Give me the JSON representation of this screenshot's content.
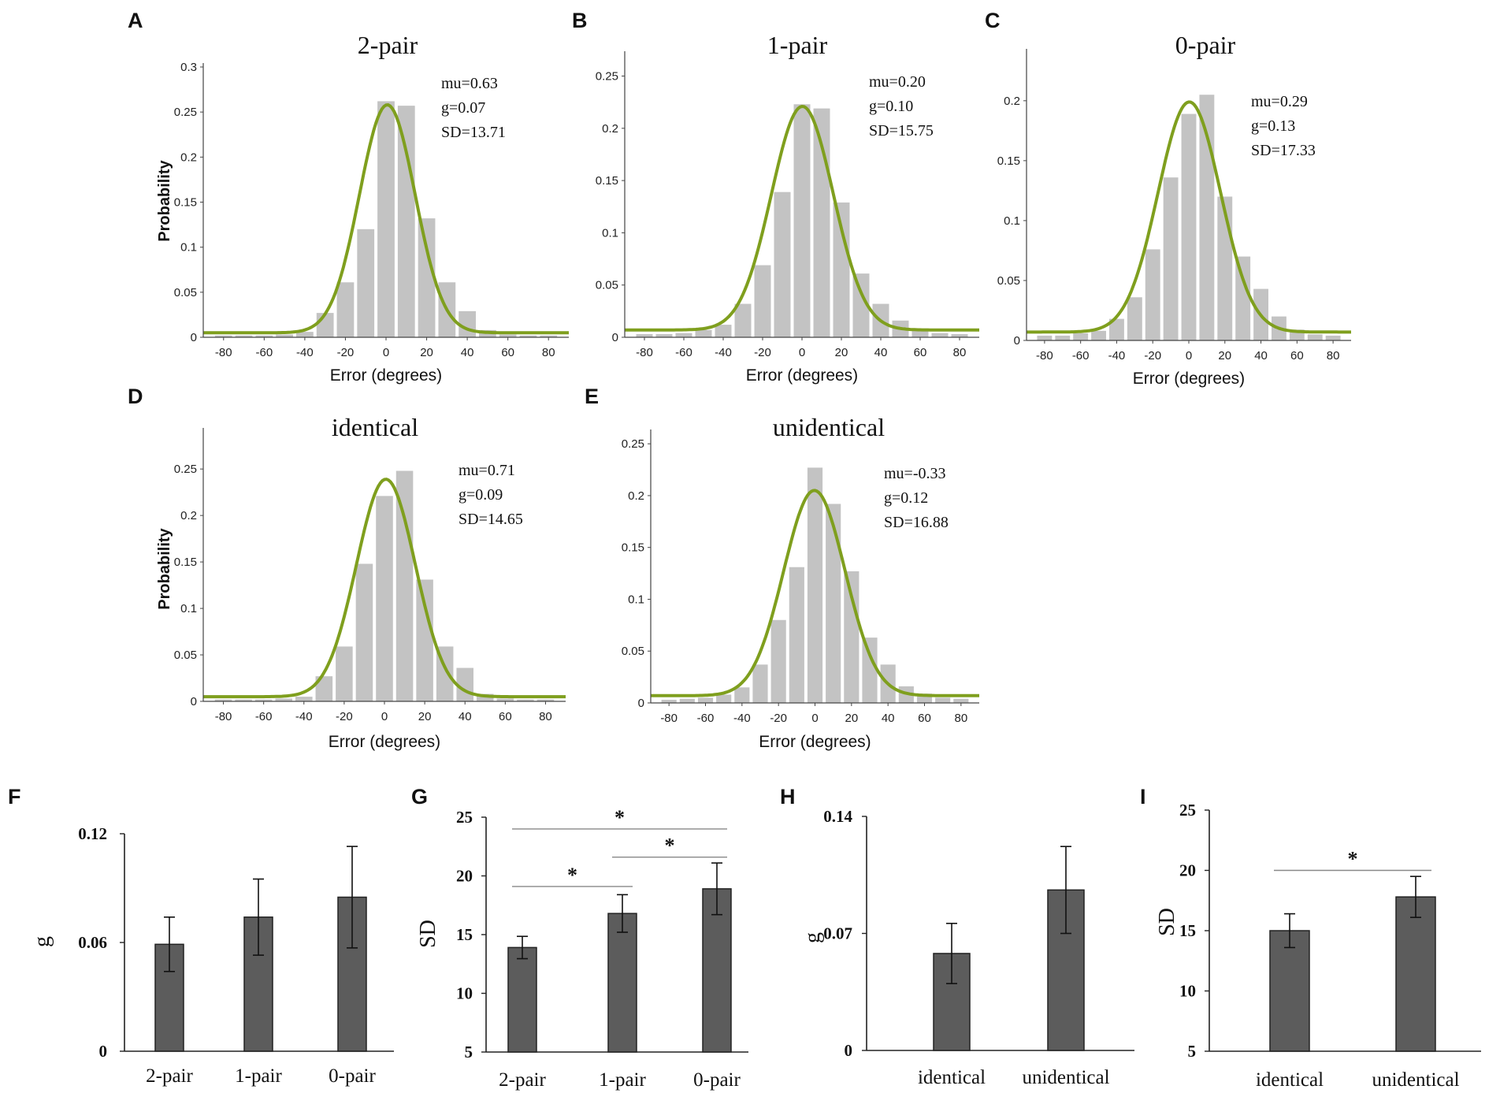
{
  "chart_data": [
    {
      "id": "A",
      "letter": "A",
      "type": "bar",
      "title": "2-pair",
      "xlabel": "Error (degrees)",
      "ylabel": "Probability",
      "xlim": [
        -90,
        90
      ],
      "ylim": [
        0,
        0.3
      ],
      "xticks": [
        "-80",
        "-60",
        "-40",
        "-20",
        "0",
        "20",
        "40",
        "60",
        "80"
      ],
      "yticks": [
        "0",
        "0.05",
        "0.1",
        "0.15",
        "0.2",
        "0.25",
        "0.3"
      ],
      "bin_centers": [
        -80,
        -70,
        -60,
        -50,
        -40,
        -30,
        -20,
        -10,
        0,
        10,
        20,
        30,
        40,
        50,
        60,
        70,
        80
      ],
      "values": [
        0.002,
        0.002,
        0.002,
        0.003,
        0.006,
        0.027,
        0.061,
        0.12,
        0.262,
        0.257,
        0.132,
        0.061,
        0.029,
        0.008,
        0.003,
        0.002,
        0.002
      ],
      "fit": {
        "mu": 0.63,
        "sd": 13.71,
        "baseline": 0.005,
        "peak": 0.258,
        "color": "#7f9f1e"
      },
      "annotations": [
        "mu=0.63",
        "g=0.07",
        "SD=13.71"
      ]
    },
    {
      "id": "B",
      "letter": "B",
      "type": "bar",
      "title": "1-pair",
      "xlabel": "Error (degrees)",
      "ylabel": "",
      "xlim": [
        -90,
        90
      ],
      "ylim": [
        0,
        0.27
      ],
      "xticks": [
        "-80",
        "-60",
        "-40",
        "-20",
        "0",
        "20",
        "40",
        "60",
        "80"
      ],
      "yticks": [
        "0",
        "0.05",
        "0.1",
        "0.15",
        "0.2",
        "0.25"
      ],
      "bin_centers": [
        -80,
        -70,
        -60,
        -50,
        -40,
        -30,
        -20,
        -10,
        0,
        10,
        20,
        30,
        40,
        50,
        60,
        70,
        80
      ],
      "values": [
        0.003,
        0.003,
        0.004,
        0.007,
        0.012,
        0.032,
        0.069,
        0.139,
        0.223,
        0.219,
        0.129,
        0.061,
        0.032,
        0.016,
        0.006,
        0.004,
        0.003
      ],
      "fit": {
        "mu": 0.2,
        "sd": 15.75,
        "baseline": 0.007,
        "peak": 0.221,
        "color": "#7f9f1e"
      },
      "annotations": [
        "mu=0.20",
        "g=0.10",
        "SD=15.75"
      ]
    },
    {
      "id": "C",
      "letter": "C",
      "type": "bar",
      "title": "0-pair",
      "xlabel": "Error (degrees)",
      "ylabel": "",
      "xlim": [
        -90,
        90
      ],
      "ylim": [
        0,
        0.24
      ],
      "xticks": [
        "-80",
        "-60",
        "-40",
        "-20",
        "0",
        "20",
        "40",
        "60",
        "80"
      ],
      "yticks": [
        "0",
        "0.05",
        "0.1",
        "0.15",
        "0.2"
      ],
      "bin_centers": [
        -80,
        -70,
        -60,
        -50,
        -40,
        -30,
        -20,
        -10,
        0,
        10,
        20,
        30,
        40,
        50,
        60,
        70,
        80
      ],
      "values": [
        0.004,
        0.004,
        0.006,
        0.008,
        0.018,
        0.036,
        0.076,
        0.136,
        0.189,
        0.205,
        0.12,
        0.07,
        0.043,
        0.02,
        0.009,
        0.005,
        0.004
      ],
      "fit": {
        "mu": 0.29,
        "sd": 17.33,
        "baseline": 0.007,
        "peak": 0.199,
        "color": "#7f9f1e"
      },
      "annotations": [
        "mu=0.29",
        "g=0.13",
        "SD=17.33"
      ]
    },
    {
      "id": "D",
      "letter": "D",
      "type": "bar",
      "title": "identical",
      "xlabel": "Error (degrees)",
      "ylabel": "Probability",
      "xlim": [
        -90,
        90
      ],
      "ylim": [
        0,
        0.29
      ],
      "xticks": [
        "-80",
        "-60",
        "-40",
        "-20",
        "0",
        "20",
        "40",
        "60",
        "80"
      ],
      "yticks": [
        "0",
        "0.05",
        "0.1",
        "0.15",
        "0.2",
        "0.25"
      ],
      "bin_centers": [
        -80,
        -70,
        -60,
        -50,
        -40,
        -30,
        -20,
        -10,
        0,
        10,
        20,
        30,
        40,
        50,
        60,
        70,
        80
      ],
      "values": [
        0.002,
        0.002,
        0.002,
        0.003,
        0.005,
        0.027,
        0.059,
        0.148,
        0.221,
        0.248,
        0.131,
        0.059,
        0.036,
        0.008,
        0.003,
        0.002,
        0.002
      ],
      "fit": {
        "mu": 0.71,
        "sd": 14.65,
        "baseline": 0.005,
        "peak": 0.239,
        "color": "#7f9f1e"
      },
      "annotations": [
        "mu=0.71",
        "g=0.09",
        "SD=14.65"
      ]
    },
    {
      "id": "E",
      "letter": "E",
      "type": "bar",
      "title": "unidentical",
      "xlabel": "Error (degrees)",
      "ylabel": "",
      "xlim": [
        -90,
        90
      ],
      "ylim": [
        0,
        0.26
      ],
      "xticks": [
        "-80",
        "-60",
        "-40",
        "-20",
        "0",
        "20",
        "40",
        "60",
        "80"
      ],
      "yticks": [
        "0",
        "0.05",
        "0.1",
        "0.15",
        "0.2",
        "0.25"
      ],
      "bin_centers": [
        -80,
        -70,
        -60,
        -50,
        -40,
        -30,
        -20,
        -10,
        0,
        10,
        20,
        30,
        40,
        50,
        60,
        70,
        80
      ],
      "values": [
        0.003,
        0.004,
        0.005,
        0.008,
        0.015,
        0.037,
        0.08,
        0.131,
        0.227,
        0.192,
        0.127,
        0.063,
        0.037,
        0.016,
        0.009,
        0.005,
        0.004
      ],
      "fit": {
        "mu": -0.33,
        "sd": 16.88,
        "baseline": 0.007,
        "peak": 0.205,
        "color": "#7f9f1e"
      },
      "annotations": [
        "mu=-0.33",
        "g=0.12",
        "SD=16.88"
      ]
    },
    {
      "id": "F",
      "letter": "F",
      "type": "bar",
      "ylabel": "g",
      "categories": [
        "2-pair",
        "1-pair",
        "0-pair"
      ],
      "values": [
        0.059,
        0.074,
        0.085
      ],
      "errors": [
        0.015,
        0.021,
        0.028
      ],
      "ylim": [
        0,
        0.12
      ],
      "yticks": [
        "0",
        "0.06",
        "0.12"
      ],
      "significance": []
    },
    {
      "id": "G",
      "letter": "G",
      "type": "bar",
      "ylabel": "SD",
      "categories": [
        "2-pair",
        "1-pair",
        "0-pair"
      ],
      "values": [
        13.9,
        16.8,
        18.9
      ],
      "errors": [
        0.95,
        1.6,
        2.2
      ],
      "ylim": [
        5,
        25
      ],
      "yticks": [
        "5",
        "10",
        "15",
        "20",
        "25"
      ],
      "significance": [
        {
          "from": 0,
          "to": 1,
          "level": 19.1,
          "label": "*"
        },
        {
          "from": 1,
          "to": 2,
          "level": 21.6,
          "label": "*"
        },
        {
          "from": 0,
          "to": 2,
          "level": 24.0,
          "label": "*"
        }
      ]
    },
    {
      "id": "H",
      "letter": "H",
      "type": "bar",
      "ylabel": "g",
      "categories": [
        "identical",
        "unidentical"
      ],
      "values": [
        0.058,
        0.096
      ],
      "errors": [
        0.018,
        0.026
      ],
      "ylim": [
        0,
        0.14
      ],
      "yticks": [
        "0",
        "0.07",
        "0.14"
      ],
      "significance": []
    },
    {
      "id": "I",
      "letter": "I",
      "type": "bar",
      "ylabel": "SD",
      "categories": [
        "identical",
        "unidentical"
      ],
      "values": [
        15.0,
        17.8
      ],
      "errors": [
        1.4,
        1.7
      ],
      "ylim": [
        5,
        25
      ],
      "yticks": [
        "5",
        "10",
        "15",
        "20",
        "25"
      ],
      "significance": [
        {
          "from": 0,
          "to": 1,
          "level": 20.0,
          "label": "*"
        }
      ]
    }
  ]
}
